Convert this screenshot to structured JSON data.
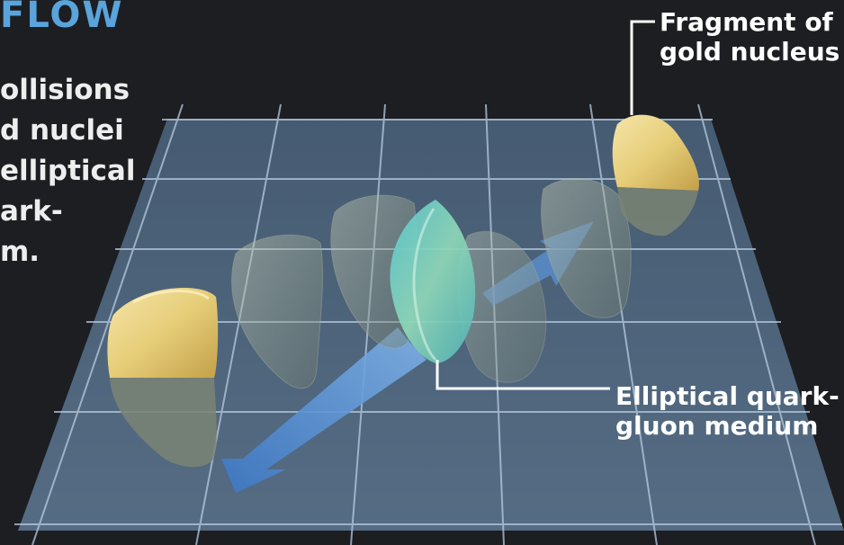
{
  "header": {
    "title": "FLOW"
  },
  "intro": {
    "lines": [
      "ollisions",
      "d nuclei",
      "elliptical",
      "ark-",
      "m."
    ]
  },
  "labels": {
    "fragment": {
      "lines": [
        "Fragment of",
        "gold nucleus"
      ]
    },
    "medium": {
      "lines": [
        "Elliptical quark-",
        "gluon medium"
      ]
    }
  },
  "colors": {
    "background": "#1c1e22",
    "title": "#5aa4dc",
    "grid_plane": "#5b7590",
    "grid_lines": "#b8cbe0",
    "nucleus_gold": "#e6cd78",
    "nucleus_ghost": "#7c8a80",
    "medium": "#6ec9c0",
    "flow_arrow": "#4a86cc",
    "leader_lines": "#ffffff"
  },
  "icons": {
    "fragment": "gold-nucleus-fragment",
    "medium": "quark-gluon-lens",
    "arrow": "flow-arrow"
  }
}
